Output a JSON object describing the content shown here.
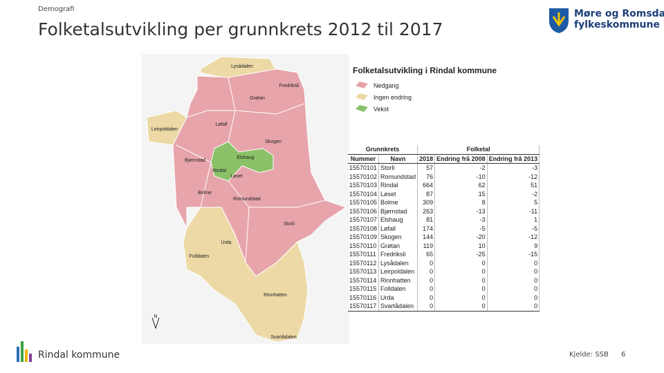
{
  "header": {
    "section": "Demografi",
    "title": "Folketalsutvikling per grunnkrets 2012 til 2017",
    "logo_lines": [
      "Møre og Romsdal",
      "fylkeskommune"
    ]
  },
  "map": {
    "title": "Folketalsutvikling i Rindal kommune",
    "legend": [
      "Nedgang",
      "Ingen endring",
      "Vekst"
    ],
    "labels": [
      "Lysådalen",
      "Fredriksli",
      "Grøtan",
      "Løfall",
      "Leirpoldalen",
      "Skogen",
      "Bjørnstad",
      "Elshaug",
      "Rindal",
      "Løset",
      "Bolme",
      "Romundstad",
      "Storli",
      "Urda",
      "Folldalen",
      "Rinnhatten",
      "Svartådalen"
    ],
    "north": "N"
  },
  "table": {
    "group_headers": [
      "Grunnkrets",
      "Folketal"
    ],
    "columns": [
      "Nummer",
      "Navn",
      "2018",
      "Endring frå 2008",
      "Endring frå 2013"
    ],
    "rows": [
      [
        15570101,
        "Storli",
        57,
        -2,
        -3
      ],
      [
        15570102,
        "Romundstad",
        76,
        -10,
        -12
      ],
      [
        15570103,
        "Rindal",
        664,
        62,
        51
      ],
      [
        15570104,
        "Løset",
        87,
        15,
        -2
      ],
      [
        15570105,
        "Bolme",
        309,
        8,
        5
      ],
      [
        15570106,
        "Bjørnstad",
        263,
        -13,
        -11
      ],
      [
        15570107,
        "Elshaug",
        81,
        -3,
        1
      ],
      [
        15570108,
        "Løfall",
        174,
        -5,
        -5
      ],
      [
        15570109,
        "Skogen",
        144,
        -20,
        -12
      ],
      [
        15570110,
        "Grøtan",
        119,
        10,
        9
      ],
      [
        15570111,
        "Fredriksli",
        65,
        -25,
        -15
      ],
      [
        15570112,
        "Lysådalen",
        0,
        0,
        0
      ],
      [
        15570113,
        "Leirpoldalen",
        0,
        0,
        0
      ],
      [
        15570114,
        "Rinnhatten",
        0,
        0,
        0
      ],
      [
        15570115,
        "Folldalen",
        0,
        0,
        0
      ],
      [
        15570116,
        "Urda",
        0,
        0,
        0
      ],
      [
        15570117,
        "Svartådalen",
        0,
        0,
        0
      ]
    ]
  },
  "footer": {
    "municipality": "Rindal kommune",
    "source": "Kjelde: SSB",
    "page": 6
  }
}
